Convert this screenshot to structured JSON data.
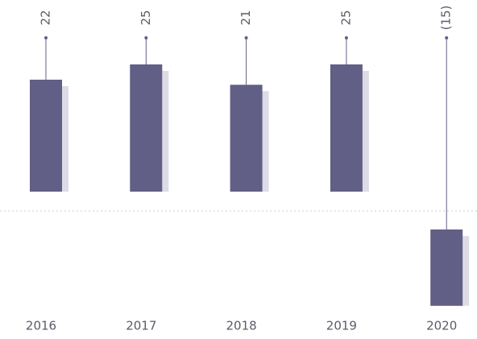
{
  "chart_data": {
    "type": "bar",
    "categories": [
      "2016",
      "2017",
      "2018",
      "2019",
      "2020"
    ],
    "values": [
      22,
      25,
      21,
      25,
      -15
    ],
    "value_labels": [
      "22",
      "25",
      "21",
      "25",
      "(15)"
    ],
    "color": "#615f85"
  }
}
